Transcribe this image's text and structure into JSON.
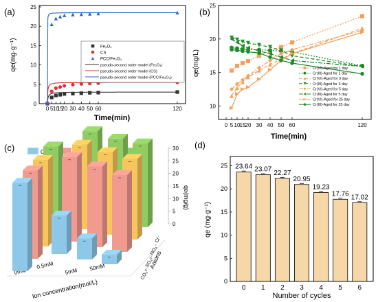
{
  "chart_data": [
    {
      "panel": "(a)",
      "type": "line",
      "xlabel": "Time(min)",
      "ylabel": "qe(mg·g⁻¹)",
      "xticks": [
        "0",
        "5",
        "10",
        "15",
        "20",
        "30",
        "40",
        "50",
        "60",
        "120"
      ],
      "yticks": [
        "0",
        "5",
        "10",
        "15",
        "20",
        "25"
      ],
      "ylim": [
        0,
        25
      ],
      "series": [
        {
          "name": "Fe₃O₄",
          "marker": "square",
          "color": "#333333",
          "x": [
            0,
            5,
            10,
            15,
            20,
            30,
            40,
            50,
            60,
            120
          ],
          "y": [
            0,
            1.6,
            2.1,
            2.3,
            2.5,
            2.6,
            2.7,
            2.8,
            2.85,
            3.0
          ]
        },
        {
          "name": "CS",
          "marker": "circle",
          "color": "#e03030",
          "x": [
            0,
            5,
            10,
            15,
            20,
            30,
            40,
            50,
            60,
            120
          ],
          "y": [
            0,
            3.2,
            4.0,
            4.3,
            4.6,
            4.9,
            5.1,
            5.2,
            5.3,
            5.5
          ]
        },
        {
          "name": "PCC/Fe₃O₄",
          "marker": "triangle",
          "color": "#2a66c8",
          "x": [
            0,
            5,
            10,
            15,
            20,
            30,
            40,
            50,
            60,
            120
          ],
          "y": [
            0,
            20.5,
            22.0,
            22.5,
            22.8,
            23.0,
            23.1,
            23.2,
            23.3,
            23.5
          ]
        }
      ],
      "fits": [
        {
          "name": "pseudo-second order model (Fe₃O₄)",
          "color": "#333333"
        },
        {
          "name": "pseudo-second order model (CS)",
          "color": "#e03030"
        },
        {
          "name": "pseudo-second order model (PCC/Fe₃O₄)",
          "color": "#2a66c8"
        }
      ]
    },
    {
      "panel": "(b)",
      "type": "line",
      "xlabel": "Time(min)",
      "ylabel": "qe(mg/L)",
      "xticks": [
        "0",
        "5",
        "10",
        "15",
        "20",
        "30",
        "40",
        "50",
        "60",
        "120"
      ],
      "yticks": [
        "10",
        "15",
        "20",
        "25"
      ],
      "ylim": [
        8,
        25
      ],
      "series": [
        {
          "name": "Cr(VI)-Aged for 1 day",
          "marker": "square",
          "color": "#f5a05a",
          "dash": "2,2",
          "x": [
            5,
            10,
            15,
            20,
            30,
            40,
            50,
            60,
            120
          ],
          "y": [
            15.3,
            16.0,
            16.4,
            16.7,
            17.5,
            18.2,
            18.8,
            19.5,
            23.4
          ]
        },
        {
          "name": "Cr(III)-Aged for 1 day",
          "marker": "circle",
          "color": "#1e8c2a",
          "dash": "2,2",
          "x": [
            5,
            10,
            15,
            20,
            30,
            40,
            50,
            60,
            120
          ],
          "y": [
            18.7,
            18.6,
            18.5,
            18.4,
            18.4,
            18.3,
            18.2,
            18.1,
            16.0
          ]
        },
        {
          "name": "Cr(VI)-Aged for 3 day",
          "marker": "triangle-up",
          "color": "#f5a05a",
          "dash": "5,3",
          "x": [
            5,
            10,
            15,
            20,
            30,
            40,
            50,
            60,
            120
          ],
          "y": [
            11.5,
            12.7,
            13.6,
            14.3,
            15.3,
            16.2,
            17.0,
            17.8,
            21.6
          ]
        },
        {
          "name": "Cr(III)-Aged for 3 day",
          "marker": "triangle-down",
          "color": "#1e8c2a",
          "dash": "5,3",
          "x": [
            5,
            10,
            15,
            20,
            30,
            40,
            50,
            60,
            120
          ],
          "y": [
            20.2,
            19.9,
            19.6,
            19.4,
            19.1,
            18.8,
            18.3,
            17.5,
            15.9
          ]
        },
        {
          "name": "Cr(VI)-Aged for 5 day",
          "marker": "diamond",
          "color": "#f5a05a",
          "dash": "6,2,2,2",
          "x": [
            5,
            10,
            15,
            20,
            30,
            40,
            50,
            60,
            120
          ],
          "y": [
            12.5,
            13.3,
            13.9,
            14.5,
            15.7,
            16.8,
            17.8,
            18.4,
            21.3
          ]
        },
        {
          "name": "Cr(III)-Aged for 5 day",
          "marker": "triangle-left",
          "color": "#1e8c2a",
          "dash": "6,2,2,2",
          "x": [
            5,
            10,
            15,
            20,
            30,
            40,
            50,
            60,
            120
          ],
          "y": [
            20.0,
            19.5,
            19.0,
            18.7,
            18.2,
            17.8,
            17.3,
            16.8,
            15.9
          ]
        },
        {
          "name": "Cr(VI)-Aged for 25 day",
          "marker": "triangle-right",
          "color": "#f5a05a",
          "dash": "",
          "x": [
            5,
            10,
            15,
            20,
            30,
            40,
            50,
            60,
            120
          ],
          "y": [
            9.7,
            11.8,
            12.5,
            12.8,
            14.0,
            15.4,
            16.8,
            17.8,
            21.0
          ]
        },
        {
          "name": "Cr(III)-Aged for 25 day",
          "marker": "hexagon",
          "color": "#1e8c2a",
          "dash": "",
          "x": [
            5,
            10,
            15,
            20,
            30,
            40,
            50,
            60,
            120
          ],
          "y": [
            18.4,
            18.3,
            18.2,
            18.1,
            17.9,
            17.3,
            16.8,
            16.4,
            14.8
          ]
        }
      ]
    },
    {
      "panel": "(c)",
      "type": "bar",
      "title": "",
      "xlabel": "Ion concentration(mol/L)",
      "ylabel": "qe(mg/g)",
      "depth_label": "Anions",
      "categories": [
        "0mM",
        "0.5mM",
        "5mM",
        "50mM"
      ],
      "anions": [
        "CO₃²⁻",
        "SO₄²⁻",
        "NO₃⁻",
        "Cl⁻"
      ],
      "yticks": [
        "0",
        "5",
        "10",
        "15",
        "20",
        "25",
        "30"
      ],
      "ylim": [
        0,
        30
      ],
      "series": [
        {
          "name": "CO₃²⁻",
          "color": "#8ec8e8",
          "values": [
            23.0,
            10.0,
            5.5,
            2.5
          ]
        },
        {
          "name": "SO₄²⁻",
          "color": "#f19a90",
          "values": [
            23.0,
            22.0,
            21.0,
            20.0
          ]
        },
        {
          "name": "NO₃⁻",
          "color": "#f6c65c",
          "values": [
            22.5,
            22.0,
            21.5,
            21.0
          ]
        },
        {
          "name": "Cl⁻",
          "color": "#90cc62",
          "values": [
            22.8,
            22.3,
            21.8,
            21.8
          ]
        }
      ]
    },
    {
      "panel": "(d)",
      "type": "bar",
      "xlabel": "Number of cycles",
      "ylabel": "qe (mg·g⁻¹)",
      "categories": [
        "0",
        "1",
        "2",
        "3",
        "4",
        "5",
        "6"
      ],
      "values": [
        23.64,
        23.07,
        22.27,
        20.95,
        19.23,
        17.76,
        17.02
      ],
      "value_labels": [
        "23.64",
        "23.07",
        "22.27",
        "20.95",
        "19.23",
        "17.76",
        "17.02"
      ],
      "yticks": [
        "0",
        "5",
        "10",
        "15",
        "20",
        "25"
      ],
      "ylim": [
        0,
        27
      ],
      "color": "#f6d8a8"
    }
  ]
}
